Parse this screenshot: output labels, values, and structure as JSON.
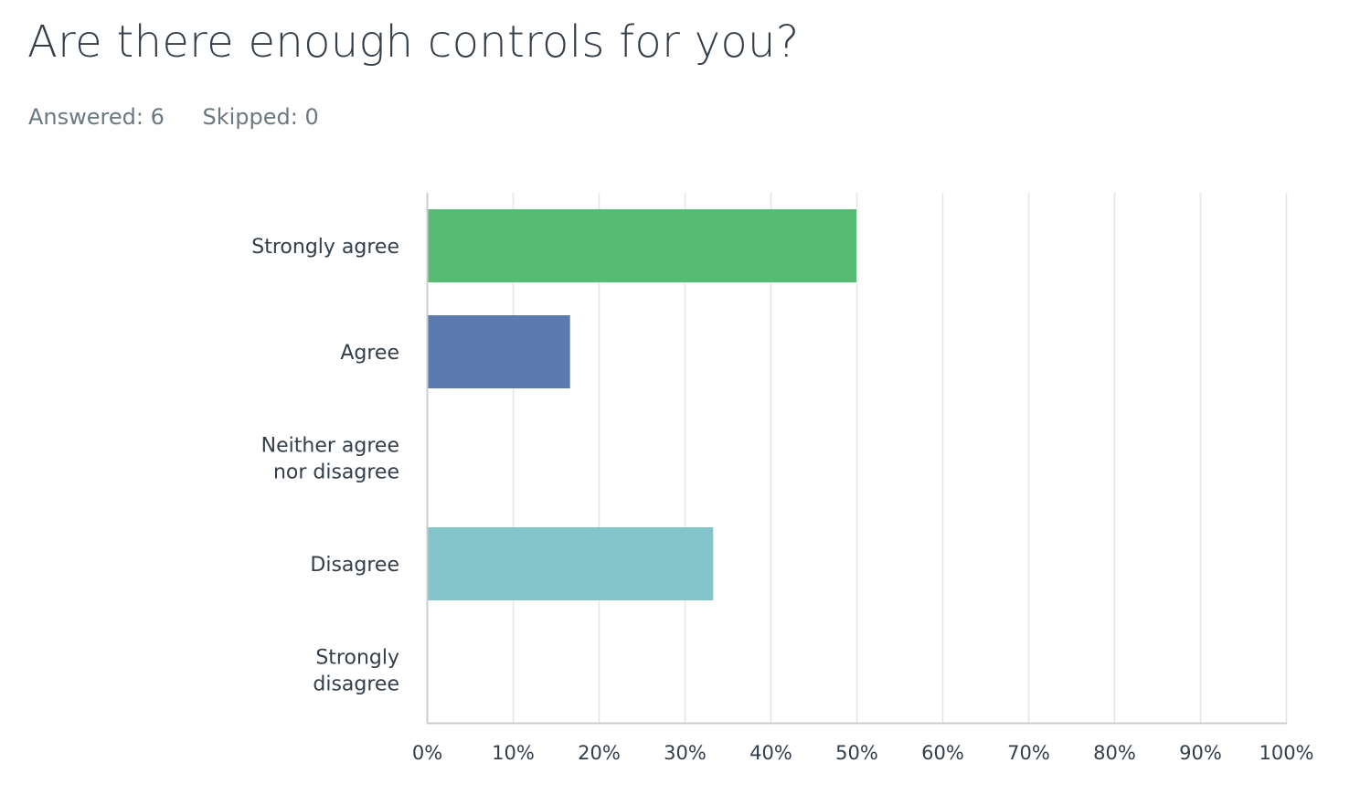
{
  "page": {
    "title": "Are there enough controls for you?",
    "answered": "Answered: 6",
    "skipped": "Skipped: 0"
  },
  "chart_data": {
    "type": "bar",
    "orientation": "horizontal",
    "categories": [
      [
        "Strongly agree"
      ],
      [
        "Agree"
      ],
      [
        "Neither agree",
        "nor disagree"
      ],
      [
        "Disagree"
      ],
      [
        "Strongly",
        "disagree"
      ]
    ],
    "values": [
      50,
      16.67,
      0,
      33.33,
      0
    ],
    "colors": [
      "#57bb73",
      "#5b7bb0",
      "#9a73b4",
      "#84c5cb",
      "#f2a45a"
    ],
    "xlim": [
      0,
      100
    ],
    "x_ticks": [
      "0%",
      "10%",
      "20%",
      "30%",
      "40%",
      "50%",
      "60%",
      "70%",
      "80%",
      "90%",
      "100%"
    ],
    "grid": true,
    "grid_color": "#e6e6e6",
    "axis_color": "#c9cdd0",
    "legend": "none"
  }
}
